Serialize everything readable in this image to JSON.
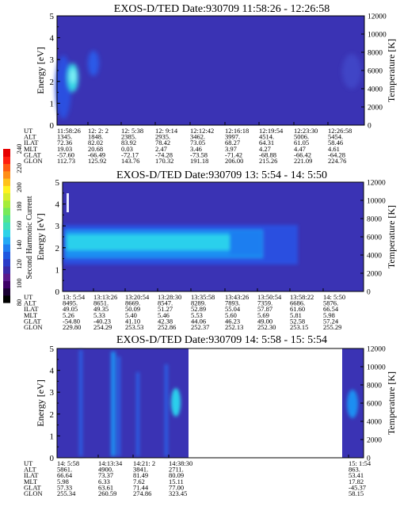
{
  "chart_data": {
    "type": "heatmap",
    "colorbar": {
      "label": "Second Harmonic Current",
      "ticks": [
        "80",
        "100",
        "120",
        "140",
        "160",
        "180",
        "200",
        "220",
        "240"
      ],
      "colors": [
        "#000000",
        "#1a0033",
        "#3d0066",
        "#5a1a8c",
        "#3a2aa8",
        "#2b3cc8",
        "#1f58e0",
        "#1e7ef0",
        "#22aaf5",
        "#2dd3e8",
        "#3fe0b8",
        "#55e68a",
        "#78ea5a",
        "#a6ec3a",
        "#d6ee2a",
        "#fff21e",
        "#ffc21a",
        "#ff8e16",
        "#ff5a12",
        "#ff1e0e",
        "#e60000"
      ]
    },
    "panels": [
      {
        "title": "EXOS-D/TED   Date:930709  11:58:26 - 12:26:58",
        "ylabel": "Energy [eV]",
        "ylabel_right": "Temperature [K]",
        "ylim": [
          0,
          5
        ],
        "yticks": [
          "0",
          "1",
          "2",
          "3",
          "4",
          "5"
        ],
        "yticks_right": [
          "0",
          "2000",
          "4000",
          "6000",
          "8000",
          "10000",
          "12000"
        ],
        "ephemeris": [
          {
            "label": "UT",
            "values": [
              "11:58:26",
              "12: 2: 2",
              "12: 5:38",
              "12: 9:14",
              "12:12:42",
              "12:16:18",
              "12:19:54",
              "12:23:30",
              "12:26:58"
            ]
          },
          {
            "label": "ALT",
            "values": [
              "1345.",
              "1848.",
              "2385.",
              "2935.",
              "3462.",
              "3997.",
              "4514.",
              "5006.",
              "5454."
            ]
          },
          {
            "label": "ILAT",
            "values": [
              "72.36",
              "82.02",
              "83.92",
              "78.42",
              "73.05",
              "68.27",
              "64.31",
              "61.05",
              "58.46"
            ]
          },
          {
            "label": "MLT",
            "values": [
              "19.03",
              "20.68",
              "0.03",
              "2.47",
              "3.46",
              "3.97",
              "4.27",
              "4.47",
              "4.61"
            ]
          },
          {
            "label": "GLAT",
            "values": [
              "-57.60",
              "-66.49",
              "-72.17",
              "-74.28",
              "-73.58",
              "-71.42",
              "-68.88",
              "-66.42",
              "-64.28"
            ]
          },
          {
            "label": "GLON",
            "values": [
              "112.73",
              "125.92",
              "143.76",
              "170.32",
              "191.18",
              "206.00",
              "215.26",
              "221.09",
              "224.76"
            ]
          }
        ]
      },
      {
        "title": "EXOS-D/TED   Date:930709  13: 5:54 - 14: 5:50",
        "ylabel": "Energy [eV]",
        "ylabel_right": "Temperature [K]",
        "ylim": [
          0,
          5
        ],
        "yticks": [
          "0",
          "1",
          "2",
          "3",
          "4",
          "5"
        ],
        "yticks_right": [
          "0",
          "2000",
          "4000",
          "6000",
          "8000",
          "10000",
          "12000"
        ],
        "ephemeris": [
          {
            "label": "UT",
            "values": [
              "13: 5:54",
              "13:13:26",
              "13:20:54",
              "13:28:30",
              "13:35:58",
              "13:43:26",
              "13:50:54",
              "13:58:22",
              "14: 5:50"
            ]
          },
          {
            "label": "ALT",
            "values": [
              "8495.",
              "8651.",
              "8669.",
              "8547.",
              "8289.",
              "7893.",
              "7359.",
              "6686.",
              "5876."
            ]
          },
          {
            "label": "ILAT",
            "values": [
              "49.05",
              "49.35",
              "50.09",
              "51.27",
              "52.89",
              "55.04",
              "57.87",
              "61.60",
              "66.54"
            ]
          },
          {
            "label": "MLT",
            "values": [
              "5.26",
              "5.33",
              "5.40",
              "5.46",
              "5.53",
              "5.60",
              "5.69",
              "5.81",
              "5.98"
            ]
          },
          {
            "label": "GLAT",
            "values": [
              "-54.80",
              "-40.23",
              "41.10",
              "42.38",
              "44.06",
              "46.23",
              "49.00",
              "52.58",
              "57.24"
            ]
          },
          {
            "label": "GLON",
            "values": [
              "229.80",
              "254.29",
              "253.53",
              "252.86",
              "252.37",
              "252.13",
              "252.30",
              "253.15",
              "255.29"
            ]
          }
        ]
      },
      {
        "title": "EXOS-D/TED   Date:930709  14: 5:58 - 15: 5:54",
        "ylabel": "Energy [eV]",
        "ylabel_right": "Temperature [K]",
        "ylim": [
          0,
          5
        ],
        "yticks": [
          "0",
          "1",
          "2",
          "3",
          "4",
          "5"
        ],
        "yticks_right": [
          "0",
          "2000",
          "4000",
          "6000",
          "8000",
          "10000",
          "12000"
        ],
        "ephemeris": [
          {
            "label": "UT",
            "values": [
              "14: 5:58",
              "14:13:34",
              "14:21: 2",
              "14:38:30",
              "15: 1:54"
            ]
          },
          {
            "label": "ALT",
            "values": [
              "5861.",
              "4900.",
              "3841.",
              "2711.",
              "863."
            ]
          },
          {
            "label": "ILAT",
            "values": [
              "66.64",
              "73.37",
              "81.49",
              "80.09",
              "53.41"
            ]
          },
          {
            "label": "MLT",
            "values": [
              "5.98",
              "6.33",
              "7.62",
              "15.11",
              "17.82"
            ]
          },
          {
            "label": "GLAT",
            "values": [
              "57.33",
              "63.61",
              "71.44",
              "77.00",
              "-45.37"
            ]
          },
          {
            "label": "GLON",
            "values": [
              "255.34",
              "260.59",
              "274.86",
              "323.45",
              "58.15"
            ]
          }
        ]
      }
    ]
  }
}
